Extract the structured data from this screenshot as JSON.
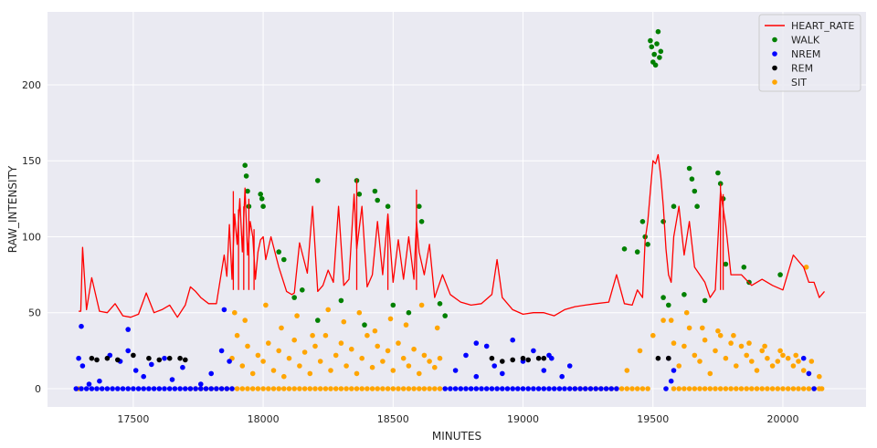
{
  "chart_data": {
    "type": "scatter",
    "title": "",
    "xlabel": "MINUTES",
    "ylabel": "RAW_INTENSITY",
    "xlim": [
      17170,
      20320
    ],
    "ylim": [
      -12,
      248
    ],
    "xticks": [
      17500,
      18000,
      18500,
      19000,
      19500,
      20000
    ],
    "yticks": [
      0,
      50,
      100,
      150,
      200
    ],
    "grid": true,
    "legend_placement": "top-right",
    "colors": {
      "background": "#EAEAF2",
      "grid": "#FFFFFF",
      "HEART_RATE": "#FF0000",
      "WALK": "#008000",
      "NREM": "#0000FF",
      "REM": "#000000",
      "SIT": "#FFA500"
    },
    "heart_rate": {
      "name": "HEART_RATE",
      "x": [
        17290,
        17298,
        17305,
        17320,
        17340,
        17370,
        17400,
        17430,
        17460,
        17490,
        17520,
        17550,
        17580,
        17610,
        17640,
        17670,
        17700,
        17720,
        17740,
        17760,
        17790,
        17820,
        17850,
        17860,
        17870,
        17880,
        17890,
        17900,
        17910,
        17920,
        17930,
        17940,
        17950,
        17960,
        17970,
        17980,
        17990,
        18000,
        18010,
        18030,
        18060,
        18090,
        18110,
        18120,
        18140,
        18170,
        18190,
        18210,
        18230,
        18250,
        18270,
        18290,
        18310,
        18330,
        18350,
        18360,
        18380,
        18400,
        18420,
        18440,
        18460,
        18480,
        18500,
        18520,
        18540,
        18560,
        18580,
        18590,
        18600,
        18620,
        18640,
        18660,
        18690,
        18720,
        18760,
        18800,
        18840,
        18880,
        18900,
        18920,
        18960,
        19000,
        19040,
        19080,
        19120,
        19160,
        19200,
        19240,
        19280,
        19330,
        19360,
        19390,
        19420,
        19440,
        19460,
        19470,
        19480,
        19490,
        19500,
        19510,
        19520,
        19530,
        19540,
        19550,
        19560,
        19570,
        19580,
        19600,
        19620,
        19640,
        19660,
        19680,
        19700,
        19720,
        19740,
        19760,
        19780,
        19800,
        19840,
        19880,
        19920,
        19960,
        20000,
        20040,
        20080,
        20100,
        20120,
        20140,
        20160
      ],
      "y": [
        51,
        51,
        93,
        52,
        73,
        51,
        50,
        56,
        48,
        47,
        49,
        63,
        50,
        52,
        55,
        47,
        55,
        67,
        64,
        60,
        56,
        56,
        88,
        74,
        108,
        72,
        115,
        95,
        125,
        90,
        132,
        88,
        110,
        100,
        72,
        90,
        98,
        100,
        85,
        100,
        80,
        64,
        62,
        63,
        96,
        76,
        120,
        64,
        68,
        78,
        70,
        120,
        68,
        72,
        128,
        92,
        120,
        67,
        75,
        110,
        75,
        115,
        70,
        98,
        72,
        100,
        72,
        110,
        90,
        75,
        95,
        60,
        75,
        62,
        57,
        55,
        56,
        62,
        85,
        60,
        52,
        49,
        50,
        50,
        48,
        52,
        54,
        55,
        56,
        57,
        75,
        56,
        55,
        65,
        60,
        98,
        110,
        130,
        150,
        148,
        154,
        140,
        120,
        92,
        75,
        70,
        100,
        120,
        88,
        110,
        80,
        75,
        70,
        60,
        65,
        130,
        108,
        75,
        75,
        68,
        72,
        68,
        65,
        88,
        80,
        70,
        70,
        60,
        64
      ],
      "spikes_x": [
        17885,
        17905,
        17925,
        17945,
        17965,
        18360,
        18480,
        18590,
        19760,
        19770
      ],
      "spikes_y": [
        130,
        118,
        120,
        125,
        105,
        138,
        114,
        131,
        135,
        128
      ]
    },
    "series": [
      {
        "name": "WALK",
        "x": [
          17930,
          17935,
          17940,
          17945,
          17990,
          17995,
          18000,
          18060,
          18080,
          18210,
          18360,
          18370,
          18430,
          18440,
          18480,
          18600,
          18610,
          19390,
          19440,
          19460,
          19470,
          19480,
          19490,
          19495,
          19500,
          19505,
          19510,
          19515,
          19520,
          19525,
          19530,
          19540,
          19580,
          19640,
          19650,
          19660,
          19670,
          19750,
          19760,
          19770,
          19780,
          19850,
          19870,
          19990,
          18120,
          18150,
          18300,
          18500,
          18560,
          18680,
          18210,
          18390,
          18700,
          19540,
          19560,
          19620,
          19700
        ],
        "y": [
          147,
          140,
          130,
          120,
          128,
          125,
          120,
          90,
          85,
          137,
          137,
          128,
          130,
          124,
          120,
          120,
          110,
          92,
          90,
          110,
          100,
          95,
          229,
          225,
          215,
          220,
          213,
          227,
          235,
          218,
          222,
          110,
          120,
          145,
          138,
          130,
          120,
          142,
          135,
          125,
          82,
          80,
          70,
          75,
          60,
          65,
          58,
          55,
          50,
          56,
          45,
          42,
          48,
          60,
          55,
          62,
          58
        ]
      },
      {
        "name": "NREM",
        "x": [
          17280,
          17300,
          17320,
          17340,
          17360,
          17380,
          17400,
          17420,
          17440,
          17460,
          17480,
          17500,
          17520,
          17540,
          17560,
          17580,
          17600,
          17620,
          17640,
          17660,
          17680,
          17700,
          17720,
          17740,
          17760,
          17780,
          17800,
          17820,
          17840,
          17860,
          17880,
          18700,
          18720,
          18740,
          18760,
          18780,
          18800,
          18820,
          18840,
          18860,
          18880,
          18900,
          18920,
          18940,
          18960,
          18980,
          19000,
          19020,
          19040,
          19060,
          19080,
          19100,
          19120,
          19140,
          19160,
          19180,
          19200,
          19220,
          19240,
          19260,
          19280,
          19300,
          19320,
          19340,
          19360,
          17290,
          17305,
          17330,
          17370,
          17410,
          17450,
          17480,
          17510,
          17540,
          17570,
          17620,
          17650,
          17690,
          17760,
          17800,
          17840,
          17870,
          18740,
          18780,
          18820,
          18860,
          18890,
          18920,
          18960,
          19000,
          19040,
          19080,
          19110,
          19150,
          19180,
          19550,
          19560,
          19570,
          19580,
          20080,
          20100,
          20120,
          17300,
          17480,
          17850,
          18820,
          19100
        ],
        "y": [
          0,
          0,
          0,
          0,
          0,
          0,
          0,
          0,
          0,
          0,
          0,
          0,
          0,
          0,
          0,
          0,
          0,
          0,
          0,
          0,
          0,
          0,
          0,
          0,
          0,
          0,
          0,
          0,
          0,
          0,
          0,
          0,
          0,
          0,
          0,
          0,
          0,
          0,
          0,
          0,
          0,
          0,
          0,
          0,
          0,
          0,
          0,
          0,
          0,
          0,
          0,
          0,
          0,
          0,
          0,
          0,
          0,
          0,
          0,
          0,
          0,
          0,
          0,
          0,
          0,
          20,
          15,
          3,
          5,
          22,
          18,
          25,
          12,
          8,
          16,
          20,
          6,
          14,
          3,
          10,
          25,
          18,
          12,
          22,
          8,
          28,
          15,
          10,
          32,
          18,
          25,
          12,
          20,
          8,
          15,
          0,
          20,
          5,
          12,
          20,
          10,
          0,
          41,
          39,
          52,
          30,
          22
        ]
      },
      {
        "name": "REM",
        "x": [
          17340,
          17360,
          17400,
          17440,
          17500,
          17560,
          17600,
          17640,
          17680,
          17700,
          18880,
          18920,
          18960,
          19000,
          19020,
          19060,
          19080,
          19520,
          19560
        ],
        "y": [
          20,
          19,
          20,
          19,
          22,
          20,
          19,
          20,
          20,
          19,
          20,
          18,
          19,
          20,
          19,
          20,
          20,
          20,
          20
        ]
      },
      {
        "name": "SIT",
        "x": [
          17290,
          17720,
          17740,
          17760,
          17780,
          17800,
          17820,
          17840,
          17860,
          17880,
          17900,
          17920,
          17940,
          17960,
          17980,
          18000,
          18020,
          18040,
          18060,
          18080,
          18100,
          18120,
          18140,
          18160,
          18180,
          18200,
          18220,
          18240,
          18260,
          18280,
          18300,
          18320,
          18340,
          18360,
          18380,
          18400,
          18420,
          18440,
          18460,
          18480,
          18500,
          18520,
          18540,
          18560,
          18580,
          18600,
          18620,
          18640,
          18660,
          18680,
          19200,
          19220,
          19240,
          19260,
          19280,
          19300,
          19320,
          19340,
          19360,
          19380,
          19400,
          19420,
          19440,
          19460,
          19480,
          19580,
          19600,
          19620,
          19640,
          19660,
          19680,
          19700,
          19720,
          19740,
          19760,
          19780,
          19800,
          19820,
          19840,
          19860,
          19880,
          19900,
          19920,
          19940,
          19960,
          19980,
          20000,
          20020,
          20040,
          20060,
          20080,
          20100,
          20120,
          20140,
          20150,
          17880,
          17900,
          17920,
          17940,
          17960,
          17980,
          18000,
          18020,
          18040,
          18060,
          18080,
          18100,
          18120,
          18140,
          18160,
          18180,
          18200,
          18220,
          18240,
          18260,
          18280,
          18300,
          18320,
          18340,
          18360,
          18380,
          18400,
          18420,
          18440,
          18460,
          18480,
          18500,
          18520,
          18540,
          18560,
          18580,
          18600,
          18620,
          18640,
          18660,
          18680,
          19400,
          19450,
          19500,
          19540,
          19560,
          19580,
          19600,
          19620,
          19640,
          19660,
          19680,
          19700,
          19720,
          19740,
          19760,
          19780,
          19800,
          19820,
          19840,
          19860,
          19880,
          19900,
          19920,
          19940,
          19960,
          19980,
          20000,
          20020,
          20040,
          20060,
          20080,
          20100,
          20140,
          17890,
          17930,
          18010,
          18070,
          18130,
          18190,
          18250,
          18310,
          18370,
          18430,
          18490,
          18550,
          18610,
          18670,
          19570,
          19630,
          19690,
          19750,
          19810,
          19870,
          19930,
          19990,
          20050,
          20110,
          20090
        ],
        "y": [
          0,
          0,
          0,
          0,
          0,
          0,
          0,
          0,
          0,
          0,
          0,
          0,
          0,
          0,
          0,
          0,
          0,
          0,
          0,
          0,
          0,
          0,
          0,
          0,
          0,
          0,
          0,
          0,
          0,
          0,
          0,
          0,
          0,
          0,
          0,
          0,
          0,
          0,
          0,
          0,
          0,
          0,
          0,
          0,
          0,
          0,
          0,
          0,
          0,
          0,
          0,
          0,
          0,
          0,
          0,
          0,
          0,
          0,
          0,
          0,
          0,
          0,
          0,
          0,
          0,
          0,
          0,
          0,
          0,
          0,
          0,
          0,
          0,
          0,
          0,
          0,
          0,
          0,
          0,
          0,
          0,
          0,
          0,
          0,
          0,
          0,
          0,
          0,
          0,
          0,
          0,
          0,
          0,
          0,
          0,
          20,
          35,
          15,
          28,
          10,
          22,
          18,
          30,
          12,
          25,
          8,
          20,
          32,
          15,
          24,
          10,
          28,
          18,
          35,
          12,
          22,
          30,
          15,
          26,
          10,
          20,
          35,
          14,
          28,
          18,
          25,
          12,
          30,
          20,
          15,
          26,
          10,
          22,
          18,
          14,
          20,
          12,
          25,
          35,
          45,
          20,
          30,
          15,
          28,
          40,
          22,
          18,
          32,
          10,
          25,
          35,
          20,
          30,
          15,
          28,
          22,
          18,
          12,
          25,
          20,
          15,
          18,
          22,
          20,
          15,
          18,
          12,
          10,
          8,
          50,
          45,
          55,
          40,
          48,
          35,
          52,
          44,
          50,
          38,
          46,
          42,
          55,
          40,
          45,
          50,
          40,
          38,
          35,
          30,
          28,
          25,
          22,
          18,
          80
        ]
      }
    ]
  }
}
